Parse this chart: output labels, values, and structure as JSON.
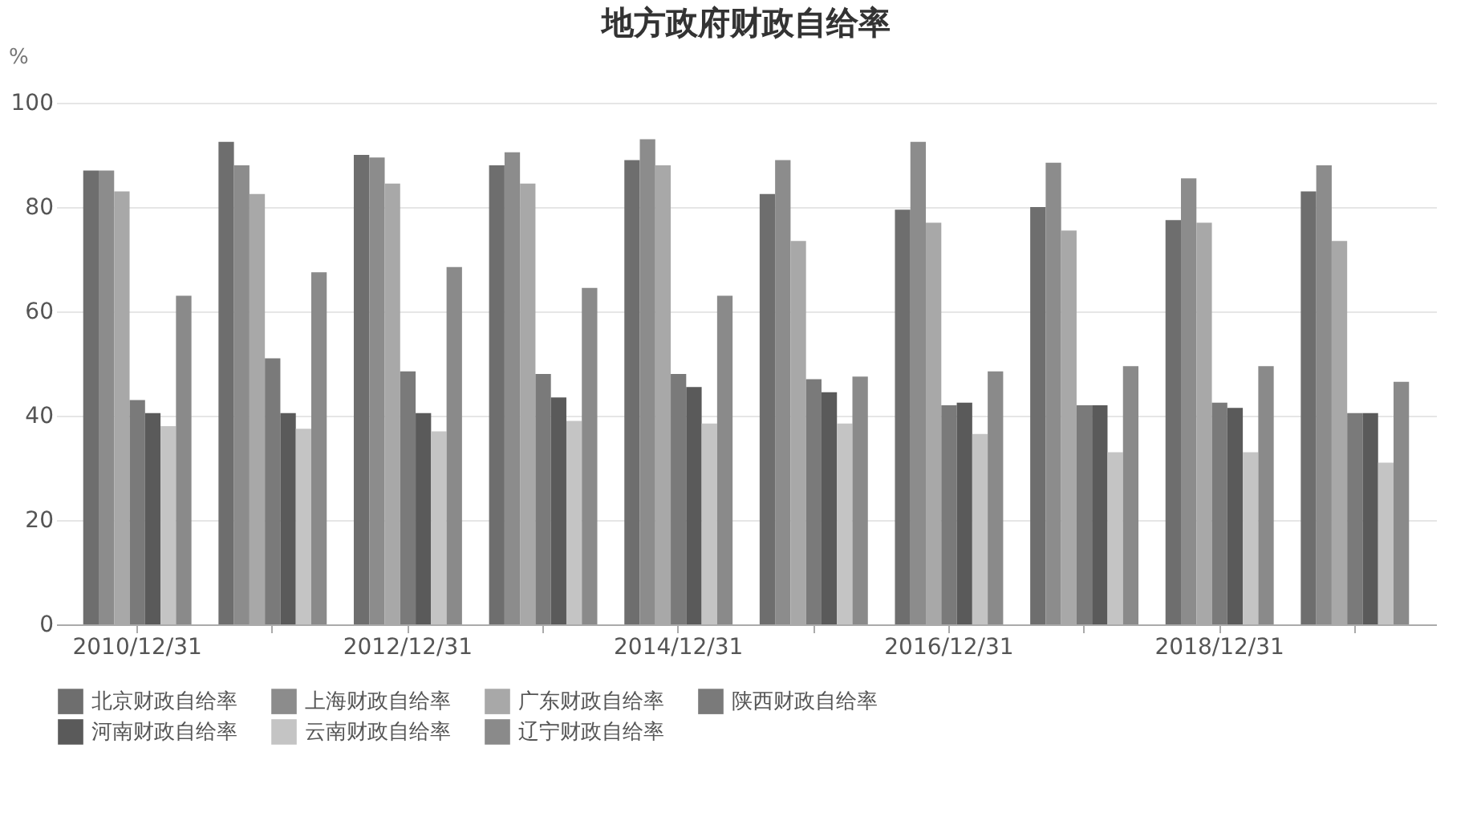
{
  "chart_data": {
    "type": "bar",
    "title": "地方政府财政自给率",
    "ylabel": "%",
    "categories": [
      "2010/12/31",
      null,
      "2012/12/31",
      null,
      "2014/12/31",
      null,
      "2016/12/31",
      null,
      "2018/12/31",
      null
    ],
    "series": [
      {
        "name": "北京财政自给率",
        "color": "#6e6e6e",
        "values": [
          87,
          92.5,
          90,
          88,
          89,
          82.5,
          79.5,
          80,
          77.5,
          83
        ]
      },
      {
        "name": "上海财政自给率",
        "color": "#8c8c8c",
        "values": [
          87,
          88,
          89.5,
          90.5,
          93,
          89,
          92.5,
          88.5,
          85.5,
          88
        ]
      },
      {
        "name": "广东财政自给率",
        "color": "#a8a8a8",
        "values": [
          83,
          82.5,
          84.5,
          84.5,
          88,
          73.5,
          77,
          75.5,
          77,
          73.5
        ]
      },
      {
        "name": "陕西财政自给率",
        "color": "#7a7a7a",
        "values": [
          43,
          51,
          48.5,
          48,
          48,
          47,
          42,
          42,
          42.5,
          40.5
        ]
      },
      {
        "name": "河南财政自给率",
        "color": "#5a5a5a",
        "values": [
          40.5,
          40.5,
          40.5,
          43.5,
          45.5,
          44.5,
          42.5,
          42,
          41.5,
          40.5
        ]
      },
      {
        "name": "云南财政自给率",
        "color": "#c4c4c4",
        "values": [
          38,
          37.5,
          37,
          39,
          38.5,
          38.5,
          36.5,
          33,
          33,
          31
        ]
      },
      {
        "name": "辽宁财政自给率",
        "color": "#8a8a8a",
        "values": [
          63,
          67.5,
          68.5,
          64.5,
          63,
          47.5,
          48.5,
          49.5,
          49.5,
          46.5
        ]
      }
    ],
    "ylim": [
      0,
      100
    ],
    "yticks": [
      0,
      20,
      40,
      60,
      80,
      100
    ],
    "grid": "y",
    "legend": "bottom"
  }
}
